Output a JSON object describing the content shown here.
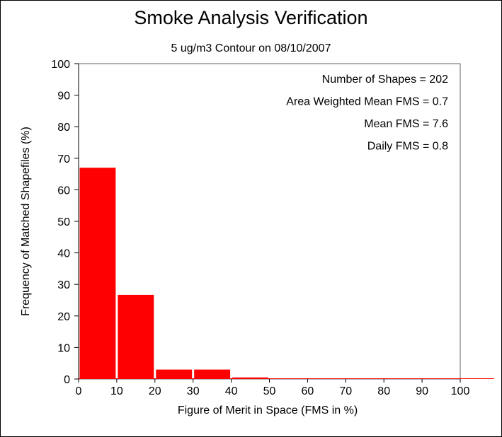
{
  "chart_data": {
    "type": "bar",
    "title": "Smoke Analysis Verification",
    "subtitle": "5 ug/m3 Contour on 08/10/2007",
    "xlabel": "Figure of Merit in Space (FMS in %)",
    "ylabel": "Frequency of Matched Shapefiles (%)",
    "xlim": [
      0,
      100
    ],
    "ylim": [
      0,
      100
    ],
    "xticks": [
      "0",
      "10",
      "20",
      "30",
      "40",
      "50",
      "60",
      "70",
      "80",
      "90",
      "100"
    ],
    "yticks": [
      "0",
      "10",
      "20",
      "30",
      "40",
      "50",
      "60",
      "70",
      "80",
      "90",
      "100"
    ],
    "bins": [
      {
        "start": 0,
        "end": 10,
        "value": 67
      },
      {
        "start": 10,
        "end": 20,
        "value": 26.7
      },
      {
        "start": 20,
        "end": 30,
        "value": 3
      },
      {
        "start": 30,
        "end": 40,
        "value": 3
      },
      {
        "start": 40,
        "end": 50,
        "value": 0.5
      },
      {
        "start": 50,
        "end": 60,
        "value": 0
      },
      {
        "start": 60,
        "end": 70,
        "value": 0
      },
      {
        "start": 70,
        "end": 80,
        "value": 0
      },
      {
        "start": 80,
        "end": 90,
        "value": 0
      },
      {
        "start": 90,
        "end": 100,
        "value": 0
      }
    ],
    "bar_color": "#ff0000",
    "annotations": [
      "Number of Shapes = 202",
      "Area Weighted Mean FMS = 0.7",
      "Mean FMS = 7.6",
      "Daily FMS = 0.8"
    ],
    "grid": false,
    "legend": "none"
  }
}
